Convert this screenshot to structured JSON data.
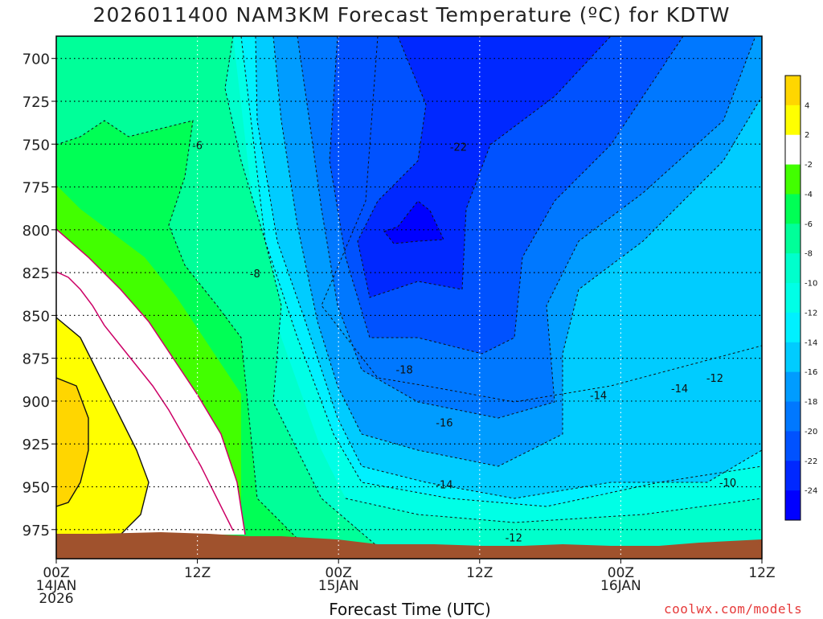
{
  "chart_data": {
    "type": "heatmap",
    "title": "2026011400 NAM3KM Forecast Temperature (ºC) for KDTW",
    "xlabel": "Forecast Time (UTC)",
    "ylabel": "",
    "x_ticks": [
      {
        "hour": 0,
        "lines": [
          "00Z",
          "14JAN",
          "2026"
        ]
      },
      {
        "hour": 12,
        "lines": [
          "12Z"
        ]
      },
      {
        "hour": 24,
        "lines": [
          "00Z",
          "15JAN"
        ]
      },
      {
        "hour": 36,
        "lines": [
          "12Z"
        ]
      },
      {
        "hour": 48,
        "lines": [
          "00Z",
          "16JAN"
        ]
      },
      {
        "hour": 60,
        "lines": [
          "12Z"
        ]
      }
    ],
    "xlim": [
      0,
      60
    ],
    "y_ticks": [
      700,
      725,
      750,
      775,
      800,
      825,
      850,
      875,
      900,
      925,
      950,
      975
    ],
    "ylim": [
      687,
      992
    ],
    "grid": true,
    "colorbar": {
      "levels": [
        4,
        2,
        -2,
        -4,
        -6,
        -8,
        -10,
        -12,
        -14,
        -16,
        -18,
        -20,
        -22,
        -24
      ],
      "colors": [
        "#ffd600",
        "#ffff00",
        "#ffffff",
        "#42ff00",
        "#00ff55",
        "#00ff99",
        "#00ffcc",
        "#00ffe6",
        "#00f0ff",
        "#00ccff",
        "#009cff",
        "#0078ff",
        "#0052ff",
        "#0028ff",
        "#0000ff"
      ]
    },
    "contour_labels": [
      {
        "text": "-6",
        "hour": 12.0,
        "pressure": 751
      },
      {
        "text": "-8",
        "hour": 16.9,
        "pressure": 826
      },
      {
        "text": "-22",
        "hour": 34.2,
        "pressure": 752
      },
      {
        "text": "-18",
        "hour": 29.6,
        "pressure": 882
      },
      {
        "text": "-16",
        "hour": 33.0,
        "pressure": 913
      },
      {
        "text": "-14",
        "hour": 33.0,
        "pressure": 949
      },
      {
        "text": "-12",
        "hour": 38.9,
        "pressure": 980
      },
      {
        "text": "-14",
        "hour": 46.1,
        "pressure": 897
      },
      {
        "text": "-14",
        "hour": 53.0,
        "pressure": 893
      },
      {
        "text": "-12",
        "hour": 56.0,
        "pressure": 887
      },
      {
        "text": "-10",
        "hour": 57.1,
        "pressure": 948
      }
    ]
  },
  "footer": {
    "credit": "coolwx.com/models"
  }
}
